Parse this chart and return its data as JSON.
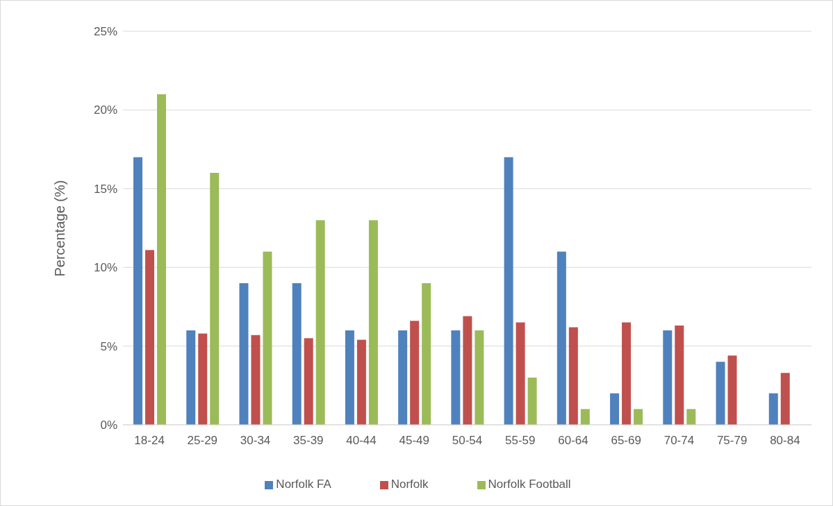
{
  "chart_data": {
    "type": "bar",
    "ylabel": "Percentage (%)",
    "categories": [
      "18-24",
      "25-29",
      "30-34",
      "35-39",
      "40-44",
      "45-49",
      "50-54",
      "55-59",
      "60-64",
      "65-69",
      "70-74",
      "75-79",
      "80-84"
    ],
    "series": [
      {
        "name": "Norfolk FA",
        "color": "#4f81bd",
        "values": [
          17,
          6,
          9,
          9,
          6,
          6,
          6,
          17,
          11,
          2,
          6,
          4,
          2
        ]
      },
      {
        "name": "Norfolk",
        "color": "#c0504d",
        "values": [
          11.1,
          5.8,
          5.7,
          5.5,
          5.4,
          6.6,
          6.9,
          6.5,
          6.2,
          6.5,
          6.3,
          4.4,
          3.3
        ]
      },
      {
        "name": "Norfolk Football",
        "color": "#9bbb59",
        "values": [
          21,
          16,
          11,
          13,
          13,
          9,
          6,
          3,
          1,
          1,
          1,
          null,
          null
        ]
      }
    ],
    "ylim": [
      0,
      25
    ],
    "yticks": [
      {
        "value": 0,
        "label": "0%"
      },
      {
        "value": 5,
        "label": "5%"
      },
      {
        "value": 10,
        "label": "10%"
      },
      {
        "value": 15,
        "label": "15%"
      },
      {
        "value": 20,
        "label": "20%"
      },
      {
        "value": 25,
        "label": "25%"
      }
    ],
    "grid": "y",
    "legend": "bottom"
  }
}
